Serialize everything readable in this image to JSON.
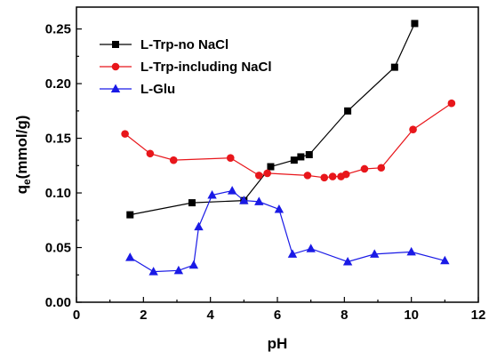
{
  "chart_data": {
    "type": "line",
    "xlabel": "pH",
    "ylabel_main": "q",
    "ylabel_sub": "e",
    "ylabel_unit": "(mmol/g)",
    "xlim": [
      0,
      12
    ],
    "ylim": [
      0,
      0.27
    ],
    "xticks": [
      0,
      2,
      4,
      6,
      8,
      10,
      12
    ],
    "yticks": [
      0.0,
      0.05,
      0.1,
      0.15,
      0.2,
      0.25
    ],
    "ytick_labels": [
      "0.00",
      "0.05",
      "0.10",
      "0.15",
      "0.20",
      "0.25"
    ],
    "grid": false,
    "legend_position": "top-left",
    "series": [
      {
        "name": "L-Trp-no NaCl",
        "color": "#000000",
        "marker": "square",
        "x": [
          1.6,
          3.45,
          5.0,
          5.8,
          6.5,
          6.7,
          6.95,
          8.1,
          9.5,
          10.1
        ],
        "y": [
          0.08,
          0.091,
          0.093,
          0.124,
          0.13,
          0.133,
          0.135,
          0.175,
          0.215,
          0.255
        ]
      },
      {
        "name": "L-Trp-including NaCl",
        "color": "#e8161b",
        "marker": "circle",
        "x": [
          1.45,
          2.2,
          2.9,
          4.6,
          5.45,
          5.7,
          6.9,
          7.4,
          7.65,
          7.9,
          8.05,
          8.6,
          9.1,
          10.05,
          11.2
        ],
        "y": [
          0.154,
          0.136,
          0.13,
          0.132,
          0.116,
          0.118,
          0.116,
          0.114,
          0.115,
          0.115,
          0.117,
          0.122,
          0.123,
          0.158,
          0.182
        ]
      },
      {
        "name": "L-Glu",
        "color": "#1a1ae6",
        "marker": "triangle",
        "x": [
          1.6,
          2.3,
          3.05,
          3.5,
          3.65,
          4.05,
          4.65,
          5.0,
          5.45,
          6.05,
          6.45,
          7.0,
          8.1,
          8.9,
          10.0,
          11.0
        ],
        "y": [
          0.041,
          0.028,
          0.029,
          0.034,
          0.069,
          0.098,
          0.102,
          0.093,
          0.092,
          0.085,
          0.044,
          0.049,
          0.037,
          0.044,
          0.046,
          0.038
        ]
      }
    ]
  }
}
